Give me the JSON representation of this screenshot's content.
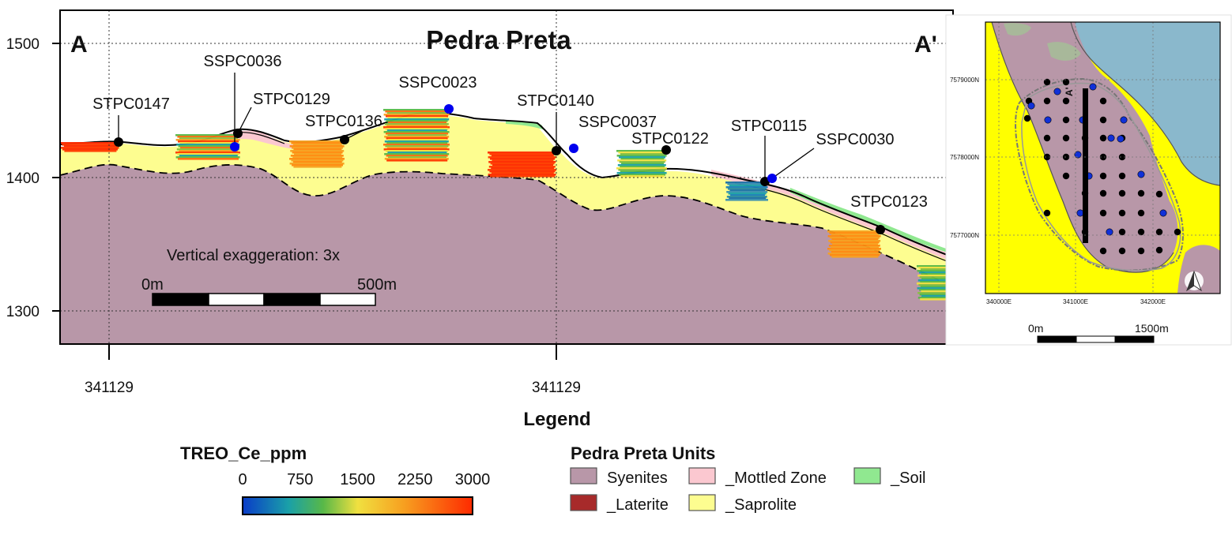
{
  "section": {
    "title": "Pedra Preta",
    "end_left": "A",
    "end_right": "A'",
    "y_ticks": [
      "1500",
      "1400",
      "1300"
    ],
    "x_ticks": [
      "341129",
      "341129"
    ],
    "vertical_exaggeration": "Vertical exaggeration: 3x",
    "scale_bar": {
      "start": "0m",
      "end": "500m"
    },
    "holes": [
      {
        "id": "STPC0147",
        "type": "STPC"
      },
      {
        "id": "SSPC0036",
        "type": "SSPC"
      },
      {
        "id": "STPC0129",
        "type": "STPC"
      },
      {
        "id": "STPC0136",
        "type": "STPC"
      },
      {
        "id": "SSPC0023",
        "type": "SSPC"
      },
      {
        "id": "STPC0140",
        "type": "STPC"
      },
      {
        "id": "SSPC0037",
        "type": "SSPC"
      },
      {
        "id": "STPC0122",
        "type": "STPC"
      },
      {
        "id": "STPC0115",
        "type": "STPC"
      },
      {
        "id": "SSPC0030",
        "type": "SSPC"
      },
      {
        "id": "STPC0123",
        "type": "STPC"
      }
    ]
  },
  "inset_map": {
    "y_ticks": [
      "7579000N",
      "7578000N",
      "7577000N"
    ],
    "x_ticks": [
      "340000E",
      "341000E",
      "342000E"
    ],
    "section_label": "A'",
    "scale_bar": {
      "start": "0m",
      "end": "1500m"
    }
  },
  "legend": {
    "title": "Legend",
    "colorbar": {
      "title": "TREO_Ce_ppm",
      "ticks": [
        "0",
        "750",
        "1500",
        "2250",
        "3000"
      ],
      "min": 0,
      "max": 3000
    },
    "units": {
      "title": "Pedra Preta Units",
      "items": [
        {
          "label": "Syenites",
          "color": "#b897a8"
        },
        {
          "label": "_Mottled Zone",
          "color": "#fbc8d0"
        },
        {
          "label": "_Soil",
          "color": "#90e890"
        },
        {
          "label": "_Laterite",
          "color": "#a72a2a"
        },
        {
          "label": "_Saprolite",
          "color": "#fdfd90"
        }
      ]
    }
  },
  "colors": {
    "syenite": "#b897a8",
    "saprolite": "#fdfd90",
    "mottled": "#fbc8d0",
    "soil": "#90e890",
    "water": "#8ab8cc",
    "map_yellow": "#ffff00",
    "gray_unit": "#a8b89a",
    "stpc_dot": "#000000",
    "sspc_dot": "#0000ee"
  }
}
